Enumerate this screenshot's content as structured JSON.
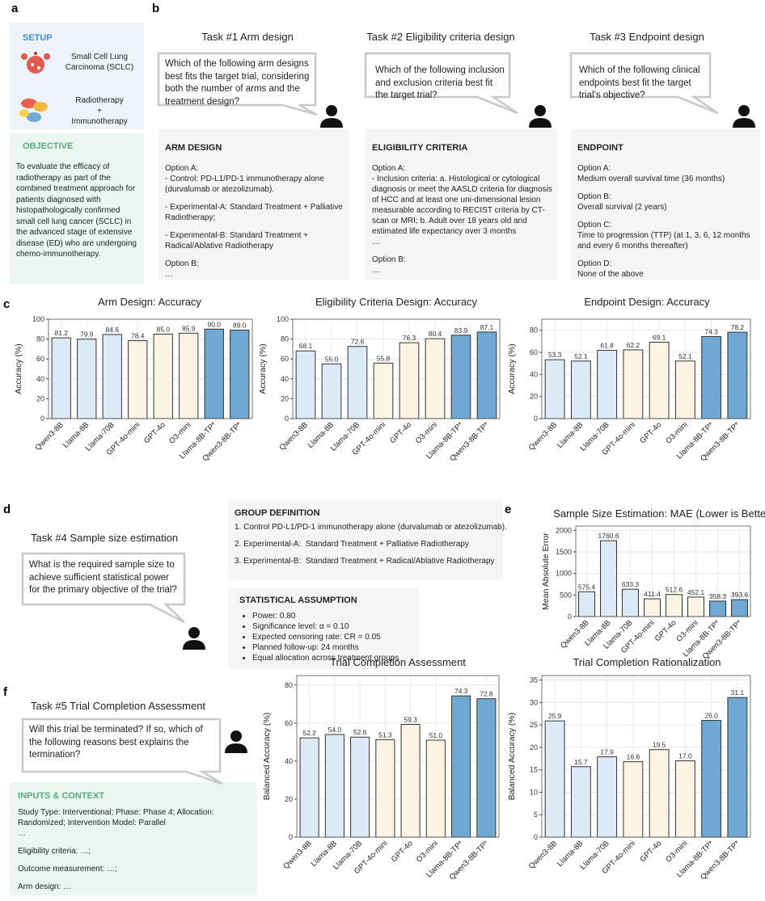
{
  "panels": {
    "labels": [
      "a",
      "b",
      "c",
      "d",
      "e",
      "f"
    ],
    "setup": {
      "heading": "SETUP",
      "disease": "Small Cell Lung Carcinoma (SCLC)",
      "treatment": [
        "Radiotherapy",
        "+",
        "Immunotherapy"
      ]
    },
    "objective": {
      "heading": "OBJECTIVE",
      "text": "To evaluate the efficacy of radiotherapy as part of the combined treatment approach for patients diagnosed with histopathologically confirmed small cell lung cancer (SCLC) in the advanced stage of extensive disease (ED) who are undergoing chemo-immunotherapy."
    },
    "tasks": [
      {
        "title": "Task #1 Arm design",
        "question": "Which of the following arm designs best fits the target trial, considering both the number of arms and the treatment design?",
        "heading": "ARM DESIGN",
        "blocks": [
          [
            "Option A:",
            "- Control: PD-L1/PD-1 immunotherapy alone (durvalumab or atezolizumab)."
          ],
          [
            "- Experimental-A: Standard Treatment + Palliative Radiotherapy;"
          ],
          [
            "- Experimental-B: Standard Treatment + Radical/Ablative Radiotherapy"
          ],
          [
            "Option B:",
            "…"
          ]
        ]
      },
      {
        "title": "Task #2 Eligibility criteria design",
        "question": "Which of the following inclusion and exclusion criteria best fit the target trial?",
        "heading": "ELIGIBILITY CRITERIA",
        "blocks": [
          [
            "Option A:",
            "- Inclusion criteria: a. Histological or cytological diagnosis or meet the AASLD criteria for diagnosis of HCC and at least one uni-dimensional lesion measurable according to RECIST criteria by CT-scan or MRI; b. Adult over 18 years old and estimated life expectancy over 3 months",
            "…"
          ],
          [
            "Option B:",
            "…"
          ]
        ]
      },
      {
        "title": "Task #3 Endpoint design",
        "question": "Which of the following clinical endpoints best fit the target trial’s objective?",
        "heading": "ENDPOINT",
        "blocks": [
          [
            "Option A:",
            "Medium overall survival time (36 months)"
          ],
          [
            "Option B:",
            "Overall survival (2 years)"
          ],
          [
            "Option C:",
            "Time to progression (TTP) (at 1, 3, 6, 12 months and every 6 months thereafter)"
          ],
          [
            "Option D:",
            "None of the above"
          ]
        ]
      },
      {
        "title": "Task #4 Sample size estimation",
        "question": "What is the required sample size to achieve sufficient statistical power for the primary objective of the trial?",
        "heading": "GROUP DEFINITION",
        "items": [
          "1. Control PD-L1/PD-1 immunotherapy alone (durvalumab or atezolizumab).",
          "2. Experimental-A:  Standard Treatment + Palliative Radiotherapy",
          "3. Experimental-B:  Standard Treatment + Radical/Ablative Radiotherapy"
        ],
        "heading2": "STATISTICAL ASSUMPTION",
        "bullets": [
          "Power: 0.80",
          "Significance level: α = 0.10",
          "Expected censoring rate: CR = 0.05",
          "Planned follow-up: 24 months",
          "Equal allocation across treatment groups"
        ]
      },
      {
        "title": "Task #5 Trial Completion Assessment",
        "question": "Will this trial be terminated? If so, which of the following reasons best explains the termination?",
        "heading": "INPUTS & CONTEXT",
        "blocks": [
          [
            "Study Type: Interventional; Phase: Phase 4; Allocation: Randomized; Intervention Model: Parallel",
            "…"
          ],
          [
            "Eligibility criteria: …;"
          ],
          [
            "Outcome measurement: …;"
          ],
          [
            "Arm design: …"
          ]
        ]
      }
    ]
  },
  "chart_data": [
    {
      "type": "bar",
      "title": "Arm Design: Accuracy",
      "ylabel": "Accuracy (%)",
      "categories": [
        "Qwen3-8B",
        "Llama-8B",
        "Llama-70B",
        "GPT-4o-mini",
        "GPT-4o",
        "O3-mini",
        "Llama-8B-TP*",
        "Qwen3-8B-TP*"
      ],
      "values": [
        81.2,
        79.9,
        84.6,
        78.4,
        85.0,
        85.9,
        90.0,
        89.0
      ],
      "value_labels": [
        "81.2",
        "79.9",
        "84.6",
        "78.4",
        "85.0",
        "85.9",
        "90.0",
        "89.0"
      ],
      "colors": [
        "#dce9f7",
        "#dce9f7",
        "#dce9f7",
        "#fdf3e2",
        "#fdf3e2",
        "#fdf3e2",
        "#6fa8d2",
        "#6fa8d2"
      ],
      "ylim": [
        0,
        100
      ],
      "yticks": [
        0,
        20,
        40,
        60,
        80,
        100
      ],
      "grid": true
    },
    {
      "type": "bar",
      "title": "Eligibility Criteria Design: Accuracy",
      "ylabel": "Accuracy (%)",
      "categories": [
        "Qwen3-8B",
        "Llama-8B",
        "Llama-70B",
        "GPT-4o-mini",
        "GPT-4o",
        "O3-mini",
        "Llama-8B-TP*",
        "Qwen3-8B-TP*"
      ],
      "values": [
        68.1,
        55.0,
        72.6,
        55.8,
        76.3,
        80.4,
        83.9,
        87.1
      ],
      "value_labels": [
        "68.1",
        "55.0",
        "72.6",
        "55.8",
        "76.3",
        "80.4",
        "83.9",
        "87.1"
      ],
      "colors": [
        "#dce9f7",
        "#dce9f7",
        "#dce9f7",
        "#fdf3e2",
        "#fdf3e2",
        "#fdf3e2",
        "#6fa8d2",
        "#6fa8d2"
      ],
      "ylim": [
        0,
        100
      ],
      "yticks": [
        0,
        20,
        40,
        60,
        80,
        100
      ],
      "grid": true
    },
    {
      "type": "bar",
      "title": "Endpoint Design: Accuracy",
      "ylabel": "Accuracy (%)",
      "categories": [
        "Qwen3-8B",
        "Llama-8B",
        "Llama-70B",
        "GPT-4o-mini",
        "GPT-4o",
        "O3-mini",
        "Llama-8B-TP*",
        "Qwen3-8B-TP*"
      ],
      "values": [
        53.3,
        52.1,
        61.8,
        62.2,
        69.1,
        52.1,
        74.3,
        78.2
      ],
      "value_labels": [
        "53.3",
        "52.1",
        "61.8",
        "62.2",
        "69.1",
        "52.1",
        "74.3",
        "78.2"
      ],
      "colors": [
        "#dce9f7",
        "#dce9f7",
        "#dce9f7",
        "#fdf3e2",
        "#fdf3e2",
        "#fdf3e2",
        "#6fa8d2",
        "#6fa8d2"
      ],
      "ylim": [
        0,
        90
      ],
      "yticks": [
        0,
        20,
        40,
        60,
        80
      ],
      "grid": true
    },
    {
      "type": "bar",
      "title": "Sample Size Estimation: MAE (Lower is Better)",
      "ylabel": "Mean Absolute Error",
      "categories": [
        "Qwen3-8B",
        "Llama-8B",
        "Llama-70B",
        "GPT-4o-mini",
        "GPT-4o",
        "O3-mini",
        "Llama-8B-TP*",
        "Qwen3-8B-TP*"
      ],
      "values": [
        575.4,
        1760.6,
        633.3,
        411.4,
        512.6,
        452.1,
        358.3,
        393.6
      ],
      "value_labels": [
        "575.4",
        "1760.6",
        "633.3",
        "411.4",
        "512.6",
        "452.1",
        "358.3",
        "393.6"
      ],
      "colors": [
        "#dce9f7",
        "#dce9f7",
        "#dce9f7",
        "#fdf3e2",
        "#fdf3e2",
        "#fdf3e2",
        "#6fa8d2",
        "#6fa8d2"
      ],
      "ylim": [
        0,
        2100
      ],
      "yticks": [
        0,
        500,
        1000,
        1500,
        2000
      ],
      "grid": true
    },
    {
      "type": "bar",
      "title": "Trial Completion Assessment",
      "ylabel": "Balanced Accuracy (%)",
      "categories": [
        "Qwen3-8B",
        "Llama-8B",
        "Llama-70B",
        "GPT-4o-mini",
        "GPT-4o",
        "O3-mini",
        "Llama-8B-TP*",
        "Qwen3-8B-TP*"
      ],
      "values": [
        52.2,
        54.0,
        52.6,
        51.3,
        59.3,
        51.0,
        74.3,
        72.8
      ],
      "value_labels": [
        "52.2",
        "54.0",
        "52.6",
        "51.3",
        "59.3",
        "51.0",
        "74.3",
        "72.8"
      ],
      "colors": [
        "#dce9f7",
        "#dce9f7",
        "#dce9f7",
        "#fdf3e2",
        "#fdf3e2",
        "#fdf3e2",
        "#6fa8d2",
        "#6fa8d2"
      ],
      "ylim": [
        0,
        85
      ],
      "yticks": [
        0,
        20,
        40,
        60,
        80
      ],
      "grid": true
    },
    {
      "type": "bar",
      "title": "Trial Completion Rationalization",
      "ylabel": "Balanced Accuracy (%)",
      "categories": [
        "Qwen3-8B",
        "Llama-8B",
        "Llama-70B",
        "GPT-4o-mini",
        "GPT-4o",
        "O3-mini",
        "Llama-8B-TP*",
        "Qwen3-8B-TP*"
      ],
      "values": [
        25.9,
        15.7,
        17.9,
        16.8,
        19.5,
        17.0,
        26.0,
        31.1
      ],
      "value_labels": [
        "25.9",
        "15.7",
        "17.9",
        "16.8",
        "19.5",
        "17.0",
        "26.0",
        "31.1"
      ],
      "colors": [
        "#dce9f7",
        "#dce9f7",
        "#dce9f7",
        "#fdf3e2",
        "#fdf3e2",
        "#fdf3e2",
        "#6fa8d2",
        "#6fa8d2"
      ],
      "ylim": [
        0,
        36
      ],
      "yticks": [
        0,
        5,
        10,
        15,
        20,
        25,
        30,
        35
      ],
      "grid": true
    }
  ]
}
